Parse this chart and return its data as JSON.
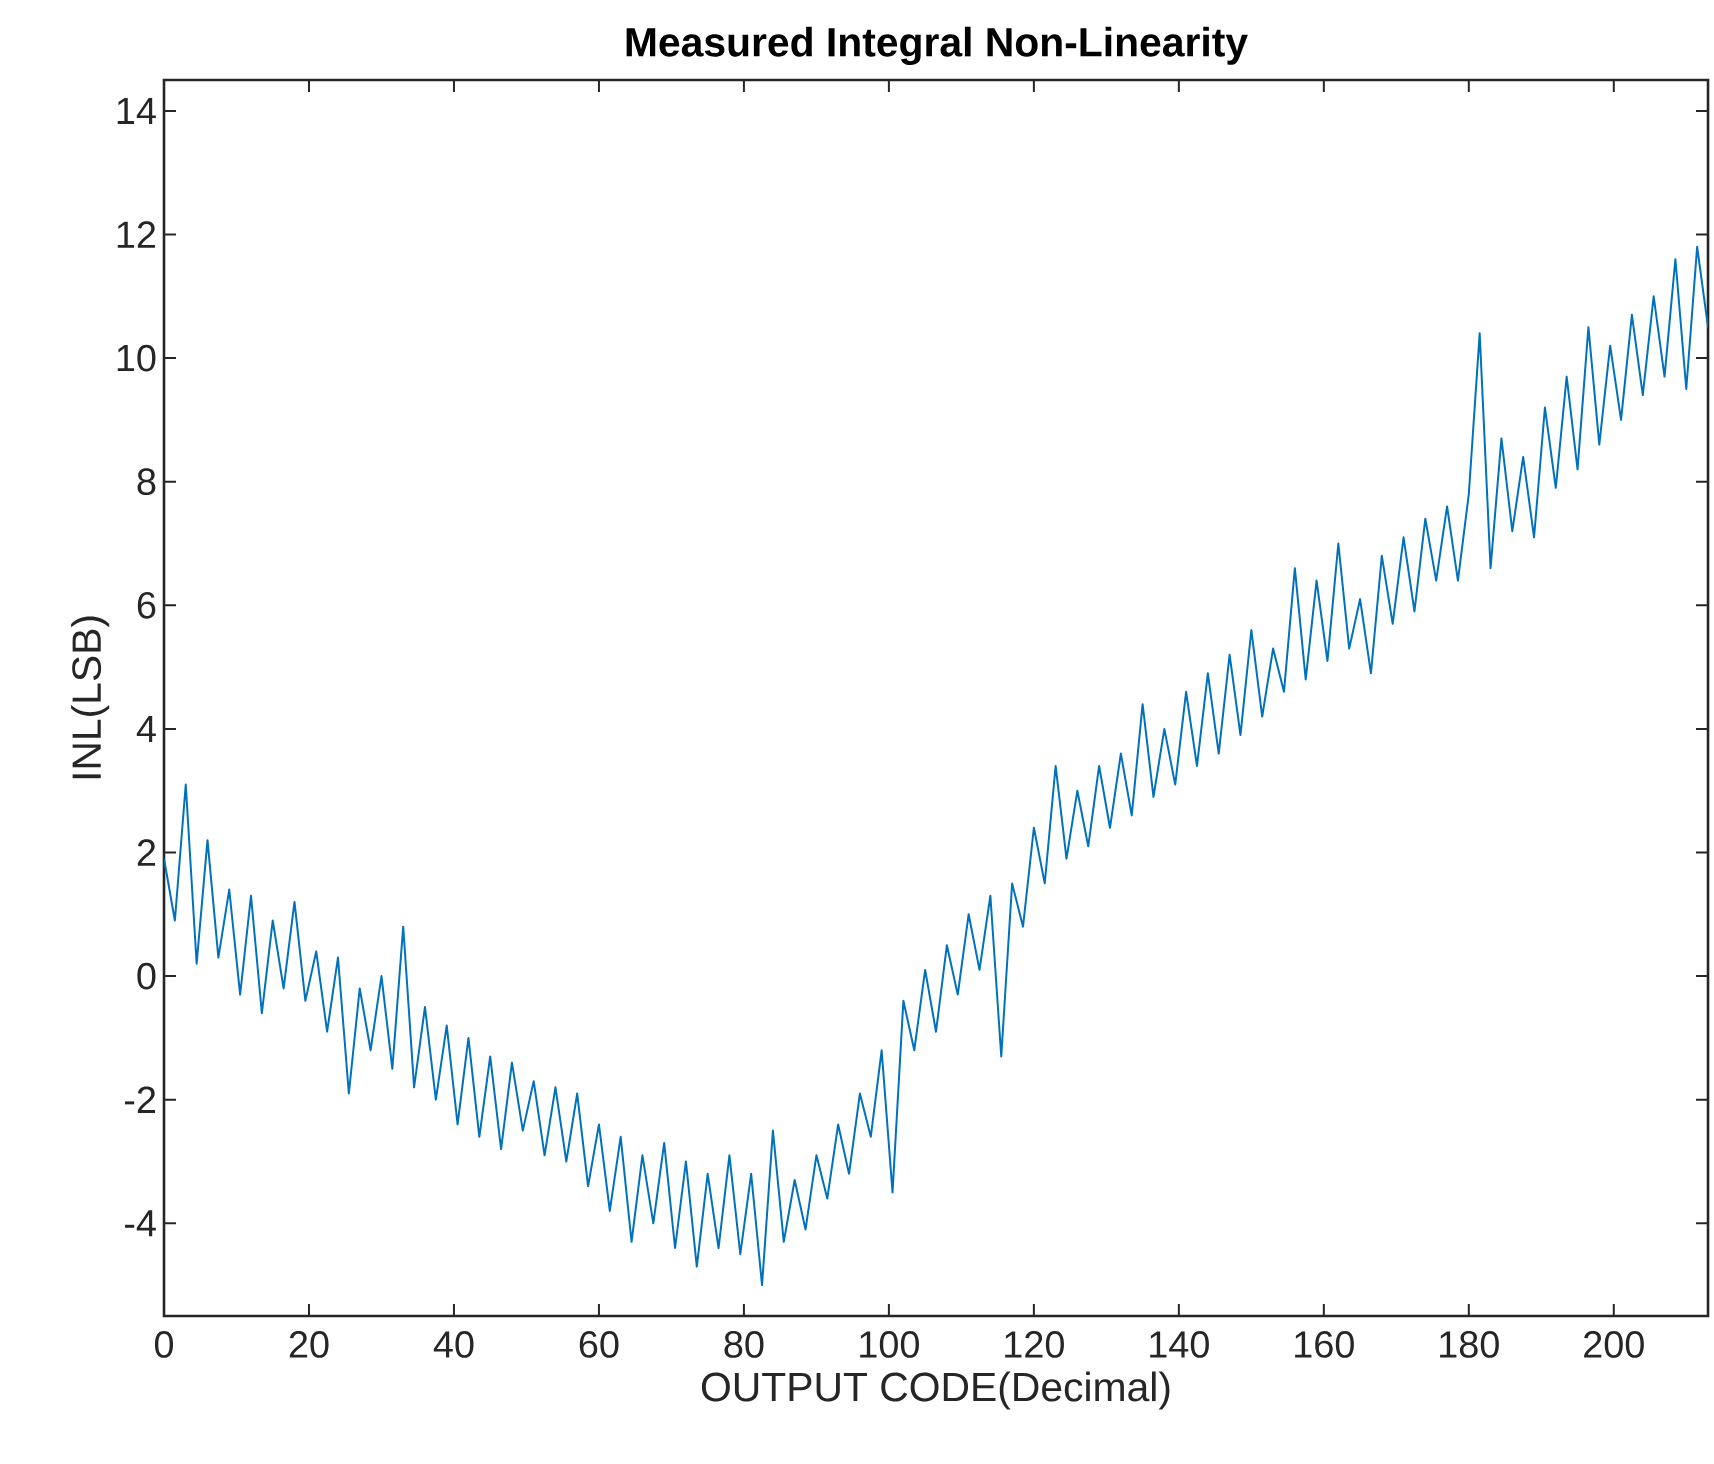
{
  "chart_data": {
    "type": "line",
    "title": "Measured Integral Non-Linearity",
    "xlabel": "OUTPUT CODE(Decimal)",
    "ylabel": "INL(LSB)",
    "xlim": [
      0,
      213
    ],
    "ylim": [
      -5.5,
      14.5
    ],
    "xticks": [
      0,
      20,
      40,
      60,
      80,
      100,
      120,
      140,
      160,
      180,
      200
    ],
    "yticks": [
      -4,
      -2,
      0,
      2,
      4,
      6,
      8,
      10,
      12,
      14
    ],
    "grid": false,
    "series": [
      {
        "color": "#0072bd",
        "x": [
          0,
          1.5,
          3,
          4.5,
          6,
          7.5,
          9,
          10.5,
          12,
          13.5,
          15,
          16.5,
          18,
          19.5,
          21,
          22.5,
          24,
          25.5,
          27,
          28.5,
          30,
          31.5,
          33,
          34.5,
          36,
          37.5,
          39,
          40.5,
          42,
          43.5,
          45,
          46.5,
          48,
          49.5,
          51,
          52.5,
          54,
          55.5,
          57,
          58.5,
          60,
          61.5,
          63,
          64.5,
          66,
          67.5,
          69,
          70.5,
          72,
          73.5,
          75,
          76.5,
          78,
          79.5,
          81,
          82.5,
          84,
          85.5,
          87,
          88.5,
          90,
          91.5,
          93,
          94.5,
          96,
          97.5,
          99,
          100.5,
          102,
          103.5,
          105,
          106.5,
          108,
          109.5,
          111,
          112.5,
          114,
          115.5,
          117,
          118.5,
          120,
          121.5,
          123,
          124.5,
          126,
          127.5,
          129,
          130.5,
          132,
          133.5,
          135,
          136.5,
          138,
          139.5,
          141,
          142.5,
          144,
          145.5,
          147,
          148.5,
          150,
          151.5,
          153,
          154.5,
          156,
          157.5,
          159,
          160.5,
          162,
          163.5,
          165,
          166.5,
          168,
          169.5,
          171,
          172.5,
          174,
          175.5,
          177,
          178.5,
          180,
          181.5,
          183,
          184.5,
          186,
          187.5,
          189,
          190.5,
          192,
          193.5,
          195,
          196.5,
          198,
          199.5,
          201,
          202.5,
          204,
          205.5,
          207,
          208.5,
          210,
          211.5,
          213
        ],
        "values": [
          1.9,
          0.9,
          3.1,
          0.2,
          2.2,
          0.3,
          1.4,
          -0.3,
          1.3,
          -0.6,
          0.9,
          -0.2,
          1.2,
          -0.4,
          0.4,
          -0.9,
          0.3,
          -1.9,
          -0.2,
          -1.2,
          0.0,
          -1.5,
          0.8,
          -1.8,
          -0.5,
          -2.0,
          -0.8,
          -2.4,
          -1.0,
          -2.6,
          -1.3,
          -2.8,
          -1.4,
          -2.5,
          -1.7,
          -2.9,
          -1.8,
          -3.0,
          -1.9,
          -3.4,
          -2.4,
          -3.8,
          -2.6,
          -4.3,
          -2.9,
          -4.0,
          -2.7,
          -4.4,
          -3.0,
          -4.7,
          -3.2,
          -4.4,
          -2.9,
          -4.5,
          -3.2,
          -5.0,
          -2.5,
          -4.3,
          -3.3,
          -4.1,
          -2.9,
          -3.6,
          -2.4,
          -3.2,
          -1.9,
          -2.6,
          -1.2,
          -3.5,
          -0.4,
          -1.2,
          0.1,
          -0.9,
          0.5,
          -0.3,
          1.0,
          0.1,
          1.3,
          -1.3,
          1.5,
          0.8,
          2.4,
          1.5,
          3.4,
          1.9,
          3.0,
          2.1,
          3.4,
          2.4,
          3.6,
          2.6,
          4.4,
          2.9,
          4.0,
          3.1,
          4.6,
          3.4,
          4.9,
          3.6,
          5.2,
          3.9,
          5.6,
          4.2,
          5.3,
          4.6,
          6.6,
          4.8,
          6.4,
          5.1,
          7.0,
          5.3,
          6.1,
          4.9,
          6.8,
          5.7,
          7.1,
          5.9,
          7.4,
          6.4,
          7.6,
          6.4,
          7.8,
          10.4,
          6.6,
          8.7,
          7.2,
          8.4,
          7.1,
          9.2,
          7.9,
          9.7,
          8.2,
          10.5,
          8.6,
          10.2,
          9.0,
          10.7,
          9.4,
          11.0,
          9.7,
          11.6,
          9.5,
          11.8,
          10.5
        ]
      }
    ]
  }
}
